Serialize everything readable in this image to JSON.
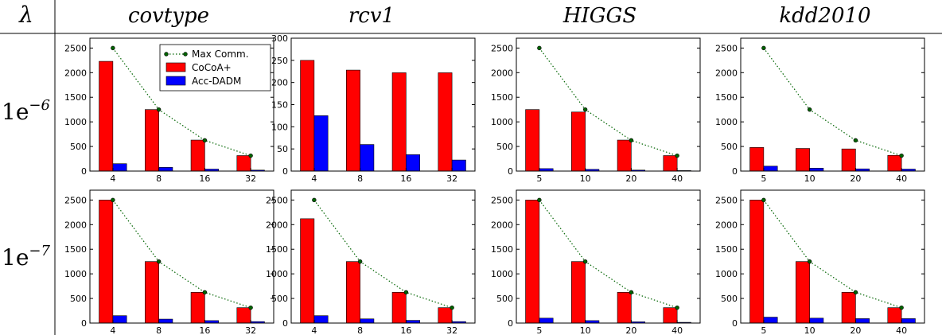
{
  "header": {
    "lambda_symbol": "λ",
    "datasets": [
      "covtype",
      "rcv1",
      "HIGGS",
      "kdd2010"
    ]
  },
  "rows": [
    {
      "base": "1e",
      "exponent": "−6"
    },
    {
      "base": "1e",
      "exponent": "−7"
    }
  ],
  "legend": {
    "entries": [
      {
        "label": "Max Comm.",
        "color": "#006400",
        "style": "dotted-line-marker"
      },
      {
        "label": "CoCoA+",
        "color": "#ff0000",
        "style": "bar"
      },
      {
        "label": "Acc-DADM",
        "color": "#0000ff",
        "style": "bar"
      }
    ],
    "placement": "top-right of first panel"
  },
  "colors": {
    "cocoa": "#ff0000",
    "acc": "#0000ff",
    "max": "#006400"
  },
  "chart_data": [
    {
      "type": "bar",
      "row": 0,
      "col": 0,
      "categories": [
        "4",
        "8",
        "16",
        "32"
      ],
      "ylim": [
        0,
        2700
      ],
      "yticks": [
        0,
        500,
        1000,
        1500,
        2000,
        2500
      ],
      "series": [
        {
          "name": "CoCoA+",
          "values": [
            2230,
            1250,
            630,
            315
          ]
        },
        {
          "name": "Acc-DADM",
          "values": [
            150,
            75,
            40,
            20
          ]
        },
        {
          "name": "Max Comm.",
          "values": [
            2500,
            1250,
            625,
            313
          ]
        }
      ],
      "legend": true
    },
    {
      "type": "bar",
      "row": 0,
      "col": 1,
      "categories": [
        "4",
        "8",
        "16",
        "32"
      ],
      "ylim": [
        0,
        300
      ],
      "yticks": [
        0,
        50,
        100,
        150,
        200,
        250,
        300
      ],
      "series": [
        {
          "name": "CoCoA+",
          "values": [
            250,
            228,
            222,
            222
          ]
        },
        {
          "name": "Acc-DADM",
          "values": [
            125,
            60,
            37,
            25
          ]
        }
      ]
    },
    {
      "type": "bar",
      "row": 0,
      "col": 2,
      "categories": [
        "5",
        "10",
        "20",
        "40"
      ],
      "ylim": [
        0,
        2700
      ],
      "yticks": [
        0,
        500,
        1000,
        1500,
        2000,
        2500
      ],
      "series": [
        {
          "name": "CoCoA+",
          "values": [
            1250,
            1200,
            630,
            315
          ]
        },
        {
          "name": "Acc-DADM",
          "values": [
            50,
            35,
            20,
            10
          ]
        },
        {
          "name": "Max Comm.",
          "values": [
            2500,
            1250,
            625,
            313
          ]
        }
      ]
    },
    {
      "type": "bar",
      "row": 0,
      "col": 3,
      "categories": [
        "5",
        "10",
        "20",
        "40"
      ],
      "ylim": [
        0,
        2700
      ],
      "yticks": [
        0,
        500,
        1000,
        1500,
        2000,
        2500
      ],
      "series": [
        {
          "name": "CoCoA+",
          "values": [
            480,
            460,
            450,
            320
          ]
        },
        {
          "name": "Acc-DADM",
          "values": [
            100,
            60,
            45,
            40
          ]
        },
        {
          "name": "Max Comm.",
          "values": [
            2500,
            1250,
            625,
            313
          ]
        }
      ]
    },
    {
      "type": "bar",
      "row": 1,
      "col": 0,
      "categories": [
        "4",
        "8",
        "16",
        "32"
      ],
      "ylim": [
        0,
        2700
      ],
      "yticks": [
        0,
        500,
        1000,
        1500,
        2000,
        2500
      ],
      "series": [
        {
          "name": "CoCoA+",
          "values": [
            2500,
            1250,
            625,
            313
          ]
        },
        {
          "name": "Acc-DADM",
          "values": [
            150,
            80,
            50,
            30
          ]
        },
        {
          "name": "Max Comm.",
          "values": [
            2500,
            1250,
            625,
            313
          ]
        }
      ]
    },
    {
      "type": "bar",
      "row": 1,
      "col": 1,
      "categories": [
        "4",
        "8",
        "16",
        "32"
      ],
      "ylim": [
        0,
        2700
      ],
      "yticks": [
        0,
        500,
        1000,
        1500,
        2000,
        2500
      ],
      "series": [
        {
          "name": "CoCoA+",
          "values": [
            2120,
            1250,
            625,
            313
          ]
        },
        {
          "name": "Acc-DADM",
          "values": [
            150,
            85,
            55,
            30
          ]
        },
        {
          "name": "Max Comm.",
          "values": [
            2500,
            1250,
            625,
            313
          ]
        }
      ]
    },
    {
      "type": "bar",
      "row": 1,
      "col": 2,
      "categories": [
        "5",
        "10",
        "20",
        "40"
      ],
      "ylim": [
        0,
        2700
      ],
      "yticks": [
        0,
        500,
        1000,
        1500,
        2000,
        2500
      ],
      "series": [
        {
          "name": "CoCoA+",
          "values": [
            2500,
            1250,
            625,
            313
          ]
        },
        {
          "name": "Acc-DADM",
          "values": [
            100,
            50,
            25,
            15
          ]
        },
        {
          "name": "Max Comm.",
          "values": [
            2500,
            1250,
            625,
            313
          ]
        }
      ]
    },
    {
      "type": "bar",
      "row": 1,
      "col": 3,
      "categories": [
        "5",
        "10",
        "20",
        "40"
      ],
      "ylim": [
        0,
        2700
      ],
      "yticks": [
        0,
        500,
        1000,
        1500,
        2000,
        2500
      ],
      "series": [
        {
          "name": "CoCoA+",
          "values": [
            2500,
            1250,
            625,
            313
          ]
        },
        {
          "name": "Acc-DADM",
          "values": [
            120,
            100,
            90,
            90
          ]
        },
        {
          "name": "Max Comm.",
          "values": [
            2500,
            1250,
            625,
            313
          ]
        }
      ]
    }
  ]
}
